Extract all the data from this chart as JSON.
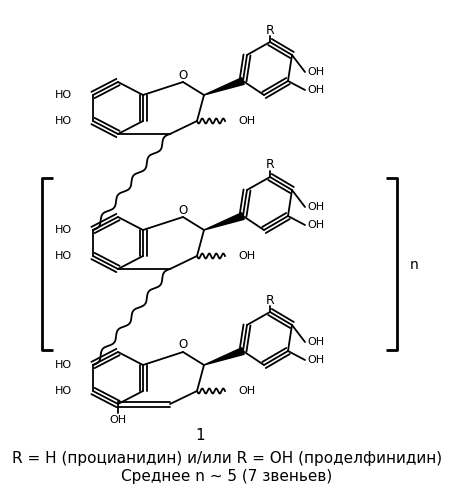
{
  "caption_line1": "R = H (процианидин) и/или R = OH (проделфинидин)",
  "caption_line2": "Среднее n ~ 5 (7 звеньев)",
  "compound_number": "1",
  "bg_color": "#ffffff",
  "text_color": "#000000",
  "fig_width": 4.55,
  "fig_height": 4.99,
  "dpi": 100
}
